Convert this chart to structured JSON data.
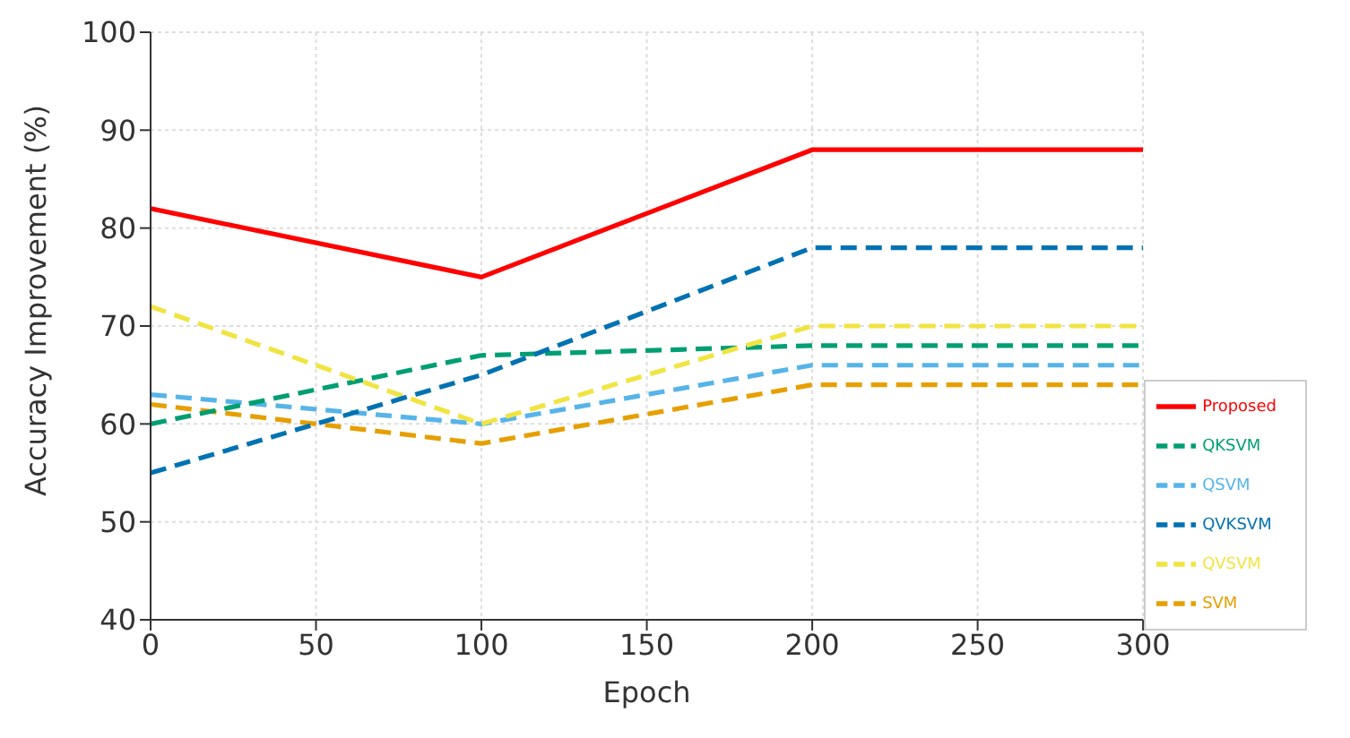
{
  "chart_data": {
    "type": "line",
    "xlabel": "Epoch",
    "ylabel": "Accuracy Improvement (%)",
    "x": [
      0,
      100,
      200,
      300
    ],
    "series": [
      {
        "name": "SVM",
        "color": "#e69f00",
        "line_style": "dashed",
        "values": [
          62,
          58,
          64,
          64
        ]
      },
      {
        "name": "QSVM",
        "color": "#56b4e9",
        "line_style": "dashed",
        "values": [
          63,
          60,
          66,
          66
        ]
      },
      {
        "name": "QKSVM",
        "color": "#009e73",
        "line_style": "dashed",
        "values": [
          60,
          67,
          68,
          68
        ]
      },
      {
        "name": "QVSVM",
        "color": "#f0e442",
        "line_style": "dashed",
        "values": [
          72,
          60,
          70,
          70
        ]
      },
      {
        "name": "QVKSVM",
        "color": "#0072b2",
        "line_style": "dashed",
        "values": [
          55,
          65,
          78,
          78
        ]
      },
      {
        "name": "Proposed",
        "color": "#ff0000",
        "line_style": "solid",
        "values": [
          82,
          75,
          88,
          88
        ]
      }
    ],
    "xlim": [
      0,
      300
    ],
    "xticks": [
      0,
      50,
      100,
      150,
      200,
      250,
      300
    ],
    "ylim": [
      40,
      100
    ],
    "yticks": [
      40,
      50,
      60,
      70,
      80,
      90,
      100
    ],
    "grid": true,
    "legend": "bottom right",
    "marker": "none"
  }
}
